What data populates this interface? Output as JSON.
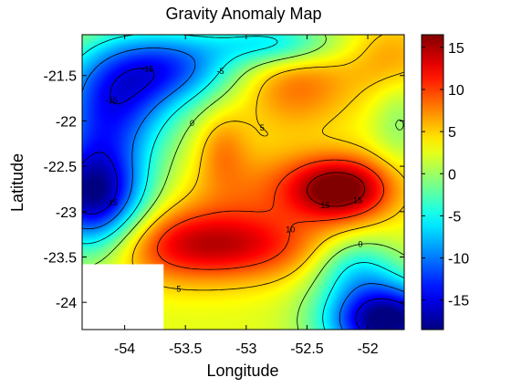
{
  "chart_data": {
    "type": "heatmap",
    "title": "Gravity Anomaly Map",
    "xlabel": "Longitude",
    "ylabel": "Latitude",
    "xlim": [
      -54.35,
      -51.7
    ],
    "ylim": [
      -24.3,
      -21.05
    ],
    "x_ticks": [
      -54,
      -53.5,
      -53,
      -52.5,
      -52
    ],
    "x_tick_labels": [
      "-54",
      "-53.5",
      "-53",
      "-52.5",
      "-52"
    ],
    "y_ticks": [
      -21.5,
      -22,
      -22.5,
      -23,
      -23.5,
      -24
    ],
    "y_tick_labels": [
      "-21.5",
      "-22",
      "-22.5",
      "-23",
      "-23.5",
      "-24"
    ],
    "colorbar": {
      "colormap": "jet",
      "range": [
        -18.5,
        16.5
      ],
      "ticks": [
        15,
        10,
        5,
        0,
        -5,
        -10,
        -15
      ],
      "tick_labels": [
        "15",
        "10",
        "5",
        "0",
        "-5",
        "-10",
        "-15"
      ]
    },
    "contour_levels": [
      -15,
      -10,
      -5,
      0,
      5,
      10,
      15
    ],
    "contour_label_texts": [
      "-10",
      "-5",
      "0",
      "5",
      "10"
    ],
    "masked_region": {
      "lon": [
        -54.35,
        -53.68
      ],
      "lat": [
        -24.3,
        -23.58
      ]
    },
    "anomaly_features": [
      {
        "kind": "high",
        "lon": -52.22,
        "lat": -22.75,
        "value": 15.5
      },
      {
        "kind": "high",
        "lon": -53.55,
        "lat": -23.35,
        "value": 11
      },
      {
        "kind": "high",
        "lon": -52.9,
        "lat": -22.75,
        "value": 6
      },
      {
        "kind": "high",
        "lon": -52.6,
        "lat": -21.6,
        "value": 10
      },
      {
        "kind": "low",
        "lon": -54.25,
        "lat": -22.85,
        "value": -17
      },
      {
        "kind": "low",
        "lon": -53.6,
        "lat": -21.4,
        "value": -15
      },
      {
        "kind": "low",
        "lon": -51.85,
        "lat": -24.2,
        "value": -17
      },
      {
        "kind": "low",
        "lon": -52.75,
        "lat": -21.1,
        "value": -8
      }
    ]
  }
}
